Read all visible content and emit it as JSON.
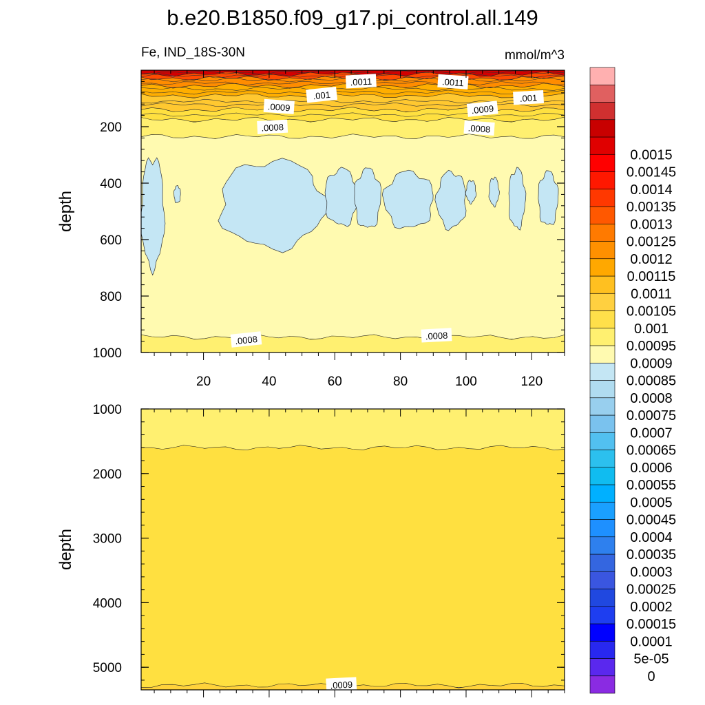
{
  "chart_data": [
    {
      "type": "heatmap",
      "panel": "upper",
      "title": "b.e20.B1850.f09_g17.pi_control.all.149",
      "left_subtitle": "Fe, IND_18S-30N",
      "right_subtitle": "mmol/m^3",
      "xlabel": "",
      "ylabel": "depth",
      "xlim": [
        1,
        130
      ],
      "ylim": [
        0,
        1000
      ],
      "y_reversed": true,
      "x_ticks": [
        "20",
        "40",
        "60",
        "80",
        "100",
        "120"
      ],
      "y_ticks": [
        "200",
        "400",
        "600",
        "800",
        "1000"
      ],
      "contour_labels": [
        {
          "text": ".0011",
          "x": 68,
          "y": 40
        },
        {
          "text": ".0011",
          "x": 96,
          "y": 42
        },
        {
          "text": ".001",
          "x": 56,
          "y": 88
        },
        {
          "text": ".001",
          "x": 119,
          "y": 98
        },
        {
          "text": ".0009",
          "x": 43,
          "y": 130
        },
        {
          "text": ".0009",
          "x": 105,
          "y": 138
        },
        {
          "text": ".0008",
          "x": 41,
          "y": 202
        },
        {
          "text": ".0008",
          "x": 104,
          "y": 206
        },
        {
          "text": ".0008",
          "x": 33,
          "y": 955
        },
        {
          "text": ".0008",
          "x": 91,
          "y": 940
        }
      ],
      "layers": [
        {
          "fill": ">0.0014",
          "from": 0,
          "to": 14
        },
        {
          "fill": "0.00125-0.0014",
          "from": 14,
          "to": 28
        },
        {
          "fill": "0.0011-0.00125",
          "from": 28,
          "to": 55
        },
        {
          "fill": "0.001-0.0011",
          "from": 55,
          "to": 90
        },
        {
          "fill": "0.0009-0.001",
          "from": 90,
          "to": 140
        },
        {
          "fill": "0.00085-0.0009",
          "from": 140,
          "to": 175
        },
        {
          "fill": "0.0008-0.00085",
          "from": 175,
          "to": 235
        },
        {
          "fill": "0.00075-0.0008",
          "from": 235,
          "to": 945
        },
        {
          "fill": "0.0008-0.00085",
          "from": 945,
          "to": 1000
        }
      ],
      "low_patches": [
        {
          "x": [
            1,
            8
          ],
          "y": [
            310,
            700
          ]
        },
        {
          "x": [
            25,
            57
          ],
          "y": [
            320,
            630
          ]
        },
        {
          "x": [
            57,
            67
          ],
          "y": [
            350,
            550
          ]
        },
        {
          "x": [
            66,
            74
          ],
          "y": [
            350,
            560
          ]
        },
        {
          "x": [
            75,
            90
          ],
          "y": [
            360,
            560
          ]
        },
        {
          "x": [
            91,
            100
          ],
          "y": [
            360,
            560
          ]
        },
        {
          "x": [
            100,
            103
          ],
          "y": [
            390,
            470
          ]
        },
        {
          "x": [
            107,
            110
          ],
          "y": [
            380,
            480
          ]
        },
        {
          "x": [
            113,
            118
          ],
          "y": [
            350,
            560
          ]
        },
        {
          "x": [
            122,
            128
          ],
          "y": [
            360,
            550
          ]
        },
        {
          "x": [
            11,
            13
          ],
          "y": [
            410,
            470
          ]
        }
      ]
    },
    {
      "type": "heatmap",
      "panel": "lower",
      "xlabel": "",
      "ylabel": "depth",
      "xlim": [
        1,
        130
      ],
      "ylim": [
        1000,
        5350
      ],
      "y_reversed": true,
      "y_ticks": [
        "1000",
        "2000",
        "3000",
        "4000",
        "5000"
      ],
      "contour_labels": [
        {
          "text": ".0009",
          "x": 62,
          "y": 5270
        }
      ],
      "layers": [
        {
          "fill": "0.0008-0.00085",
          "from": 1000,
          "to": 1600
        },
        {
          "fill": "0.00085-0.0009",
          "from": 1600,
          "to": 5280
        },
        {
          "fill": "0.0009-0.00095",
          "from": 5280,
          "to": 5350
        }
      ]
    }
  ],
  "colorbar": {
    "colors": [
      "#8A2BE2",
      "#5a28ee",
      "#2828f0",
      "#0000ff",
      "#1e3ef0",
      "#2048e0",
      "#3a56e0",
      "#3466e0",
      "#2e80ee",
      "#1e90ff",
      "#1aa0ff",
      "#00b0ff",
      "#10bcf0",
      "#2cc0ee",
      "#52c0f0",
      "#7ac2ee",
      "#98cfee",
      "#b0dcf0",
      "#c4e6f4",
      "#fffab0",
      "#fff070",
      "#ffe04a",
      "#ffd040",
      "#ffc020",
      "#ffa800",
      "#ff9000",
      "#ff7a00",
      "#ff5800",
      "#ff3800",
      "#ff1800",
      "#ff0000",
      "#e00000",
      "#c80000",
      "#d03030",
      "#e06060",
      "#ffb0b0"
    ],
    "labels": [
      "0",
      "5e-05",
      "0.0001",
      "0.00015",
      "0.0002",
      "0.00025",
      "0.0003",
      "0.00035",
      "0.0004",
      "0.00045",
      "0.0005",
      "0.00055",
      "0.0006",
      "0.00065",
      "0.0007",
      "0.00075",
      "0.0008",
      "0.00085",
      "0.0009",
      "0.00095",
      "0.001",
      "0.00105",
      "0.0011",
      "0.00115",
      "0.0012",
      "0.00125",
      "0.0013",
      "0.00135",
      "0.0014",
      "0.00145",
      "0.0015"
    ]
  },
  "fill_colors": {
    ">0.0014": "#d40000",
    "0.00125-0.0014": "#ff4a00",
    "0.0011-0.00125": "#ff8c00",
    "0.001-0.0011": "#ffae00",
    "0.0009-0.001": "#ffc830",
    "0.00085-0.0009": "#ffe040",
    "0.0008-0.00085": "#fff070",
    "0.00075-0.0008": "#fffab0",
    "0.0007-0.00075": "#c4e6f4",
    "0.0009-0.00095": "#ffd23a"
  }
}
